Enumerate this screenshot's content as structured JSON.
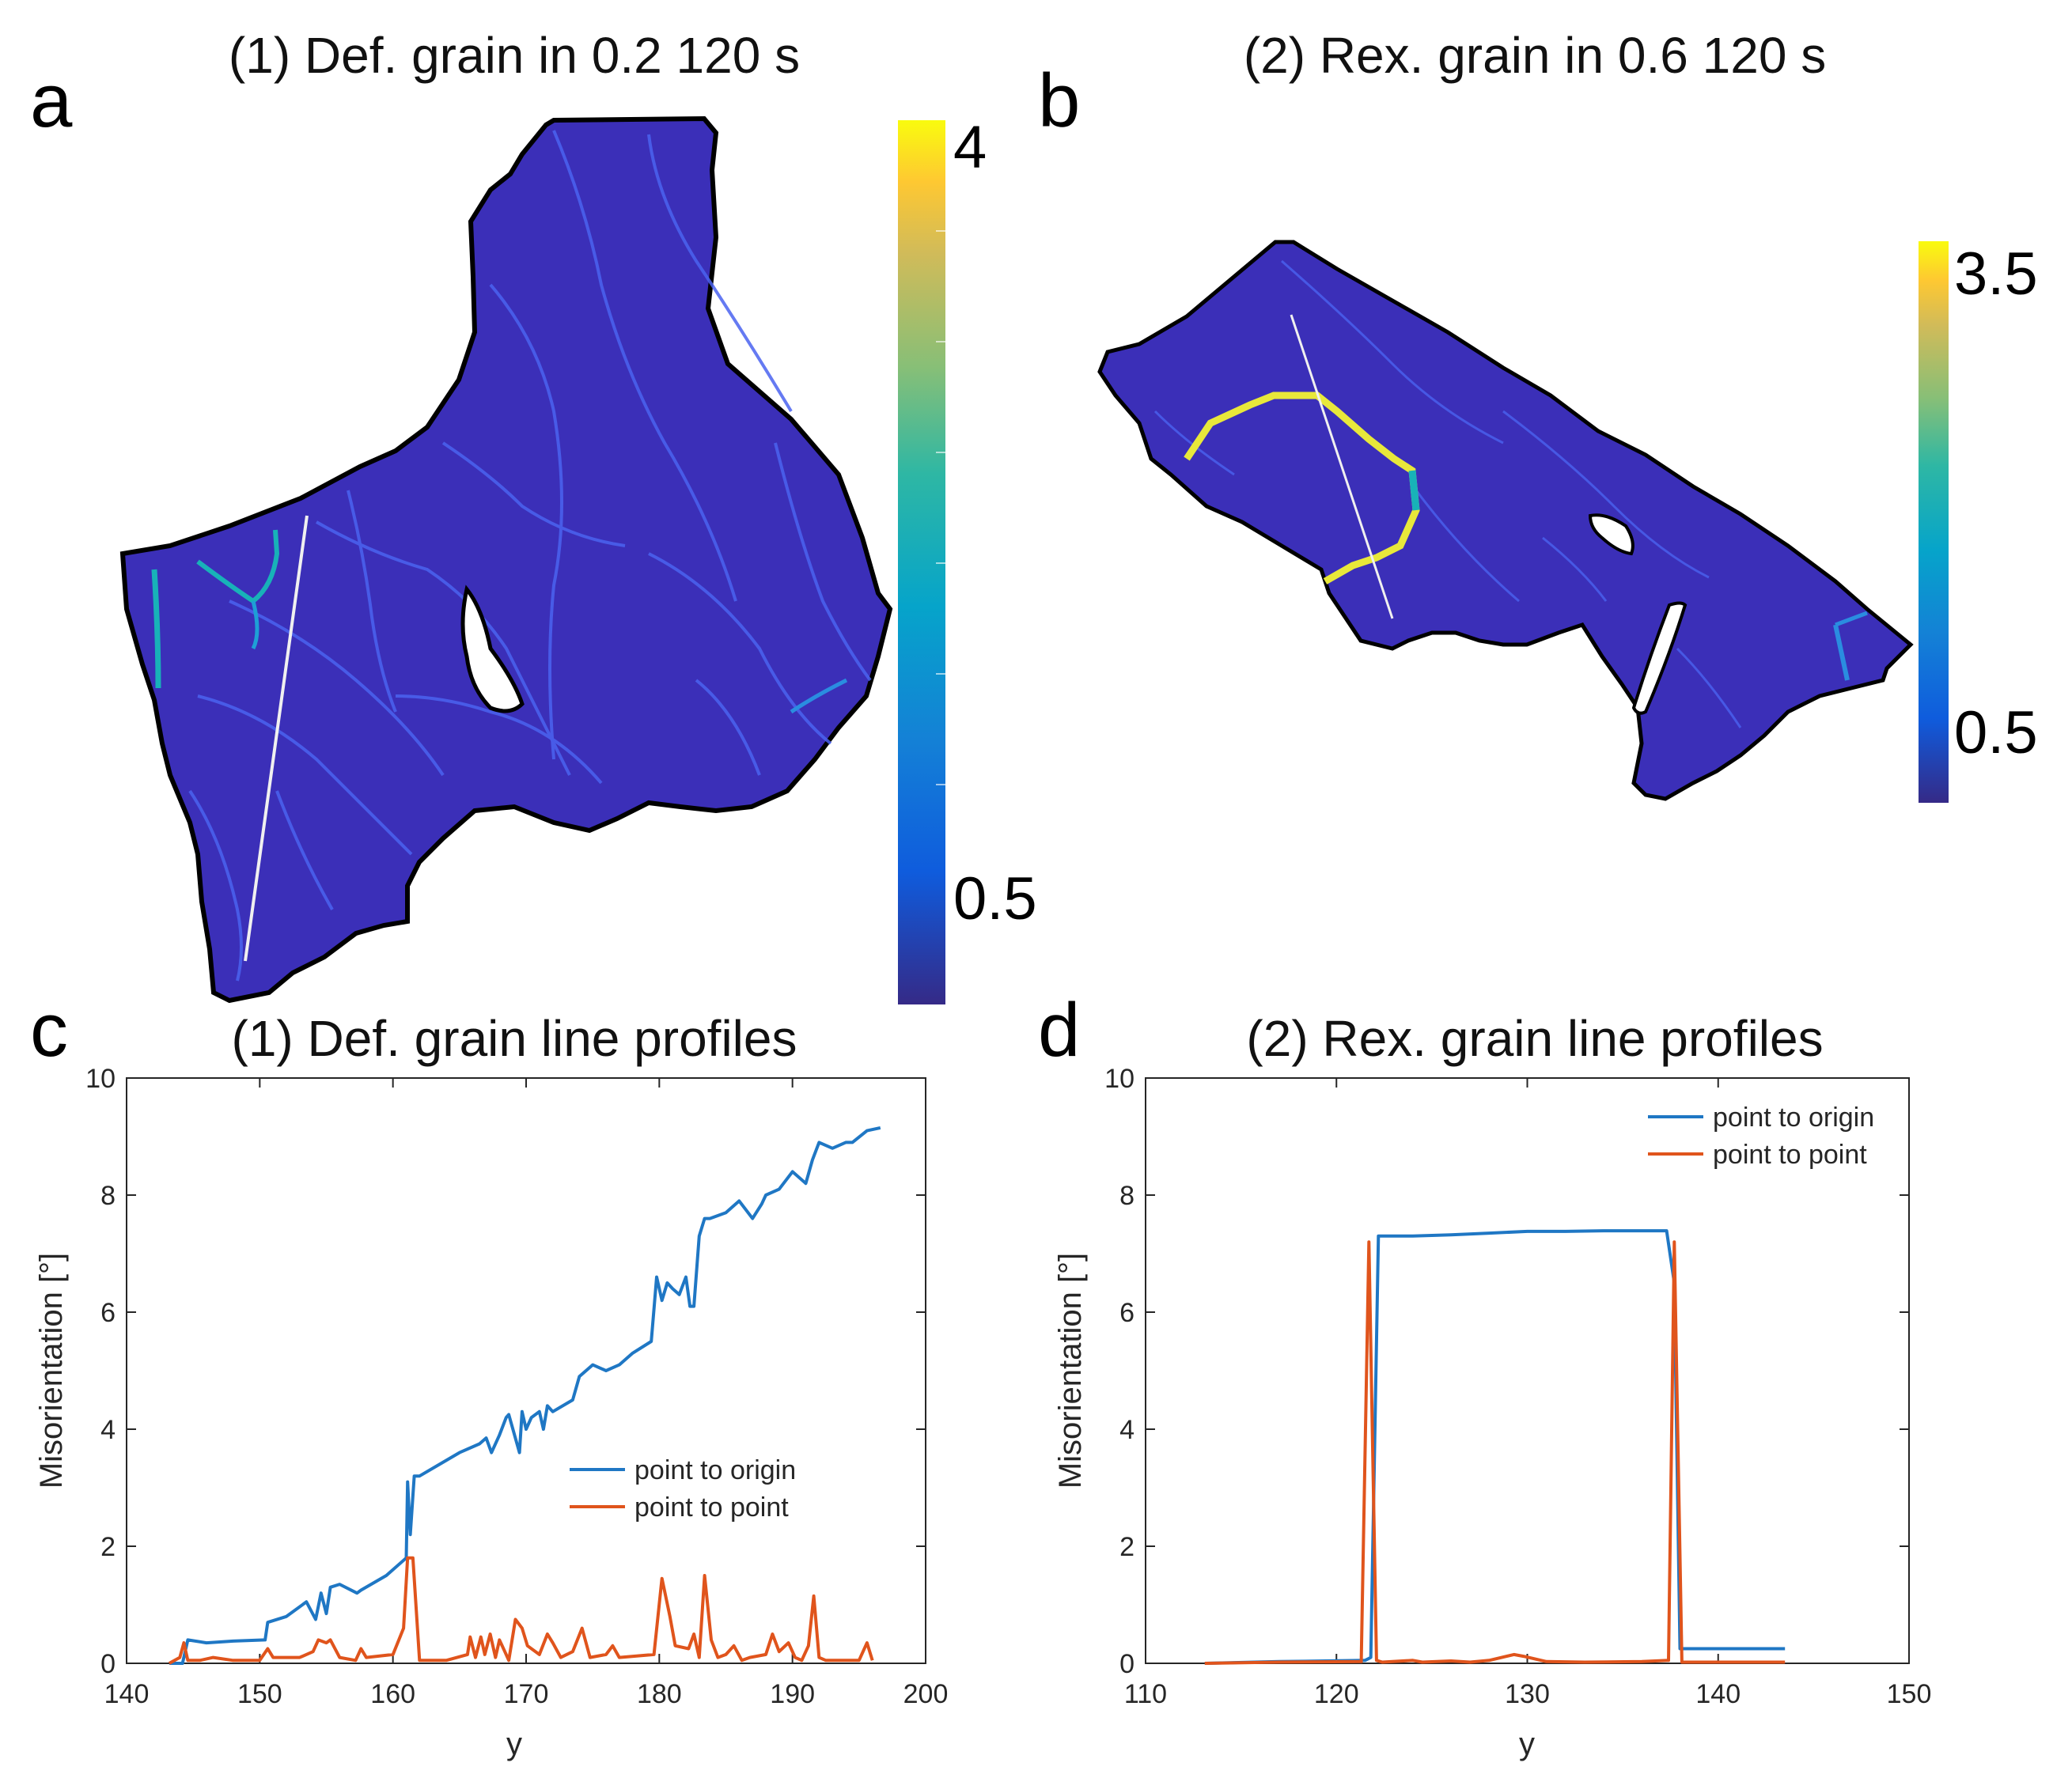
{
  "colors": {
    "map_bg": "#3b2fb8",
    "map_vein": "#4b63f0",
    "map_boundary_cyan": "#18b2b8",
    "map_boundary_yellow": "#e8e83a",
    "series_origin": "#1f77c4",
    "series_point": "#e0541c",
    "axis": "#262626"
  },
  "panels": {
    "a": {
      "letter": "a",
      "title": "(1) Def. grain in 0.2 120 s",
      "colorbar": {
        "max_label": "4",
        "min_label": "0.5",
        "max": 4,
        "min": 0.5
      }
    },
    "b": {
      "letter": "b",
      "title": "(2) Rex. grain in 0.6 120 s",
      "colorbar": {
        "max_label": "3.5",
        "min_label": "0.5",
        "max": 3.5,
        "min": 0.5
      }
    },
    "c": {
      "letter": "c"
    },
    "d": {
      "letter": "d"
    }
  },
  "chart_data": [
    {
      "id": "c",
      "type": "line",
      "title": "(1) Def. grain line profiles",
      "xlabel": "y",
      "ylabel": "Misorientation [°]",
      "xlim": [
        140,
        200
      ],
      "ylim": [
        0,
        10
      ],
      "xticks": [
        140,
        150,
        160,
        170,
        180,
        190,
        200
      ],
      "yticks": [
        0,
        2,
        4,
        6,
        8,
        10
      ],
      "legend": "center-right",
      "series": [
        {
          "name": "point to origin",
          "color": "#1f77c4",
          "x": [
            143.2,
            144.2,
            144.6,
            146,
            148,
            150.4,
            150.6,
            152,
            153.5,
            154.2,
            154.6,
            155,
            155.3,
            156,
            157.3,
            157.6,
            159.5,
            161,
            161.1,
            161.3,
            161.6,
            162,
            163.5,
            165,
            166.5,
            167,
            167.4,
            168,
            168.5,
            168.7,
            169.5,
            169.7,
            170,
            170.4,
            171,
            171.3,
            171.6,
            172,
            173.5,
            174,
            175,
            176,
            177,
            178,
            179.4,
            179.8,
            180.2,
            180.6,
            181,
            181.5,
            182,
            182.3,
            182.6,
            183,
            183.4,
            183.8,
            185,
            186,
            187,
            187.7,
            188,
            189,
            190,
            191,
            191.5,
            192,
            193,
            194,
            194.5,
            195.6,
            196.6
          ],
          "values": [
            0.0,
            0.0,
            0.4,
            0.35,
            0.38,
            0.4,
            0.7,
            0.8,
            1.05,
            0.75,
            1.2,
            0.85,
            1.3,
            1.35,
            1.2,
            1.25,
            1.5,
            1.8,
            3.1,
            2.2,
            3.2,
            3.2,
            3.4,
            3.6,
            3.75,
            3.85,
            3.6,
            3.9,
            4.2,
            4.25,
            3.6,
            4.3,
            4.0,
            4.2,
            4.3,
            4.0,
            4.4,
            4.3,
            4.5,
            4.9,
            5.1,
            5.0,
            5.1,
            5.3,
            5.5,
            6.6,
            6.2,
            6.5,
            6.4,
            6.3,
            6.6,
            6.1,
            6.1,
            7.3,
            7.6,
            7.6,
            7.7,
            7.9,
            7.6,
            7.85,
            8.0,
            8.1,
            8.4,
            8.2,
            8.6,
            8.9,
            8.8,
            8.9,
            8.9,
            9.1,
            9.15
          ]
        },
        {
          "name": "point to point",
          "color": "#e0541c",
          "x": [
            143.2,
            144,
            144.3,
            144.6,
            145.5,
            146.5,
            148,
            150,
            150.6,
            151,
            153,
            154,
            154.4,
            155,
            155.3,
            156,
            157.2,
            157.6,
            158,
            160,
            160.8,
            161.1,
            161.5,
            162,
            164,
            165.6,
            165.8,
            166.2,
            166.6,
            166.9,
            167.3,
            167.7,
            168,
            168.4,
            168.7,
            169.2,
            169.7,
            170.1,
            171,
            171.6,
            172,
            172.6,
            173.5,
            174.2,
            174.8,
            176,
            176.5,
            177,
            179.6,
            180.2,
            180.8,
            181.2,
            182.2,
            182.6,
            183,
            183.4,
            183.9,
            184.4,
            185,
            185.6,
            186.2,
            186.8,
            188,
            188.5,
            189,
            189.7,
            190.2,
            190.7,
            191.2,
            191.6,
            192,
            192.5,
            195,
            195.6,
            196
          ],
          "values": [
            0.0,
            0.1,
            0.35,
            0.05,
            0.05,
            0.1,
            0.05,
            0.05,
            0.25,
            0.1,
            0.1,
            0.2,
            0.4,
            0.35,
            0.4,
            0.1,
            0.05,
            0.25,
            0.1,
            0.15,
            0.6,
            1.8,
            1.8,
            0.05,
            0.05,
            0.15,
            0.45,
            0.1,
            0.45,
            0.15,
            0.5,
            0.1,
            0.4,
            0.2,
            0.05,
            0.75,
            0.6,
            0.3,
            0.15,
            0.5,
            0.35,
            0.1,
            0.2,
            0.6,
            0.1,
            0.15,
            0.3,
            0.1,
            0.15,
            1.45,
            0.8,
            0.3,
            0.25,
            0.5,
            0.1,
            1.5,
            0.4,
            0.1,
            0.15,
            0.3,
            0.05,
            0.1,
            0.15,
            0.5,
            0.2,
            0.35,
            0.1,
            0.05,
            0.3,
            1.15,
            0.1,
            0.05,
            0.05,
            0.35,
            0.05
          ]
        }
      ]
    },
    {
      "id": "d",
      "type": "line",
      "title": "(2) Rex. grain line profiles",
      "xlabel": "y",
      "ylabel": "Misorientation [°]",
      "xlim": [
        110,
        150
      ],
      "ylim": [
        0,
        10
      ],
      "xticks": [
        110,
        120,
        130,
        140,
        150
      ],
      "yticks": [
        0,
        2,
        4,
        6,
        8,
        10
      ],
      "legend": "top-right",
      "series": [
        {
          "name": "point to origin",
          "color": "#1f77c4",
          "x": [
            113.1,
            117,
            121.5,
            121.8,
            122.2,
            124,
            126,
            128,
            130,
            132,
            134,
            136,
            137.3,
            137.7,
            138,
            140,
            143.5
          ],
          "values": [
            0.0,
            0.03,
            0.05,
            0.1,
            7.3,
            7.3,
            7.32,
            7.35,
            7.38,
            7.38,
            7.39,
            7.39,
            7.39,
            6.5,
            0.25,
            0.25,
            0.25
          ]
        },
        {
          "name": "point to point",
          "color": "#e0541c",
          "x": [
            113.1,
            117,
            121.3,
            121.7,
            122.1,
            122.4,
            124,
            124.5,
            126,
            127,
            128,
            129.3,
            129.8,
            131,
            133,
            136,
            137.4,
            137.7,
            138.1,
            139,
            143.5
          ],
          "values": [
            0.0,
            0.02,
            0.03,
            7.2,
            0.05,
            0.02,
            0.05,
            0.02,
            0.04,
            0.02,
            0.05,
            0.15,
            0.12,
            0.03,
            0.02,
            0.03,
            0.05,
            7.2,
            0.02,
            0.02,
            0.02
          ]
        }
      ]
    }
  ]
}
